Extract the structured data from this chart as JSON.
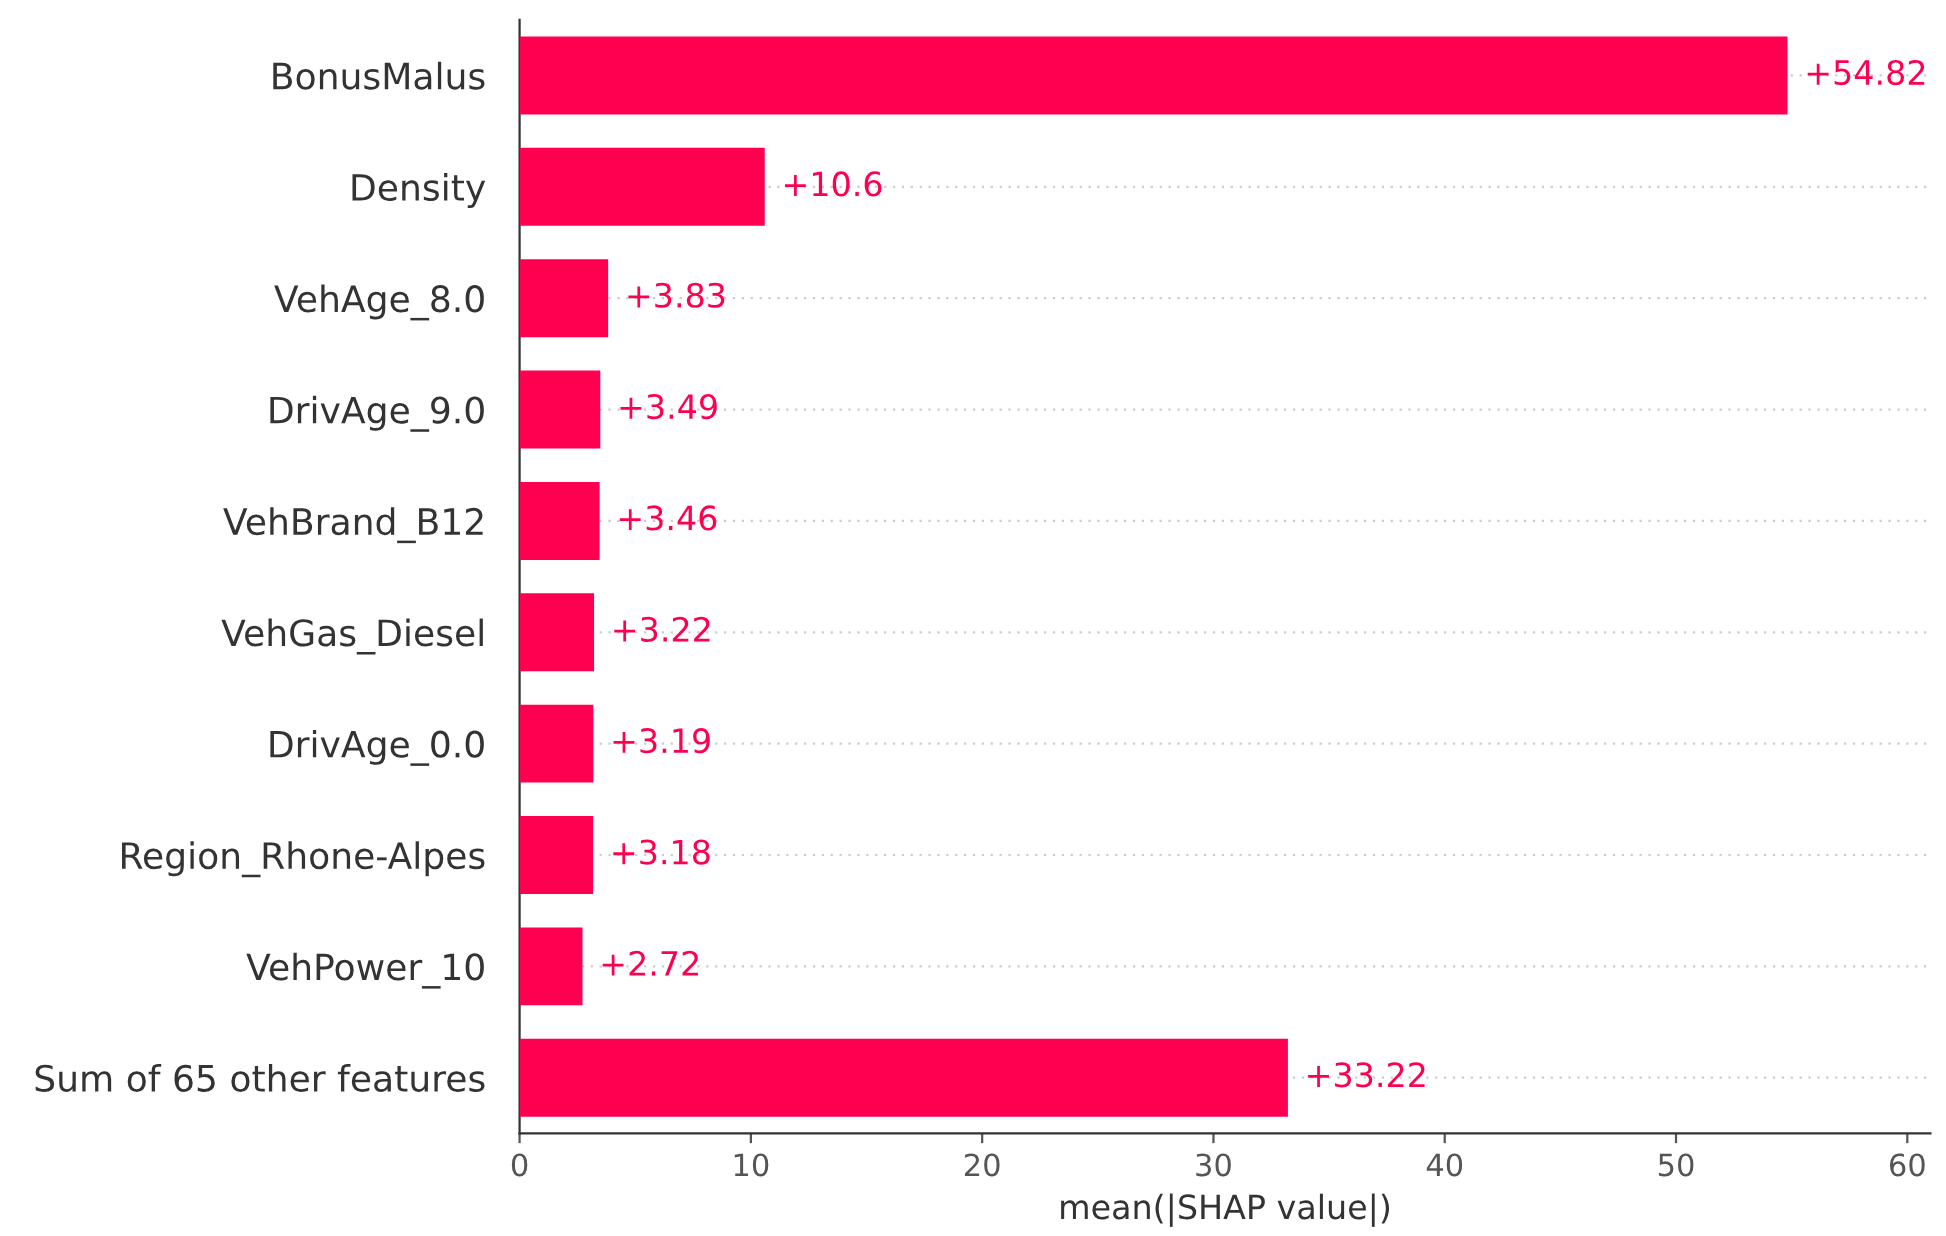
{
  "chart_data": {
    "type": "bar",
    "orientation": "horizontal",
    "xlabel": "mean(|SHAP value|)",
    "categories": [
      "BonusMalus",
      "Density",
      "VehAge_8.0",
      "DrivAge_9.0",
      "VehBrand_B12",
      "VehGas_Diesel",
      "DrivAge_0.0",
      "Region_Rhone-Alpes",
      "VehPower_10",
      "Sum of 65 other features"
    ],
    "values": [
      54.82,
      10.6,
      3.83,
      3.49,
      3.46,
      3.22,
      3.19,
      3.18,
      2.72,
      33.22
    ],
    "value_labels": [
      "+54.82",
      "+10.6",
      "+3.83",
      "+3.49",
      "+3.46",
      "+3.22",
      "+3.19",
      "+3.18",
      "+2.72",
      "+33.22"
    ],
    "color": "#ff0051",
    "xlim": [
      0,
      61
    ],
    "xticks": [
      0,
      10,
      20,
      30,
      40,
      50,
      60
    ],
    "grid": "y",
    "legend": false
  }
}
